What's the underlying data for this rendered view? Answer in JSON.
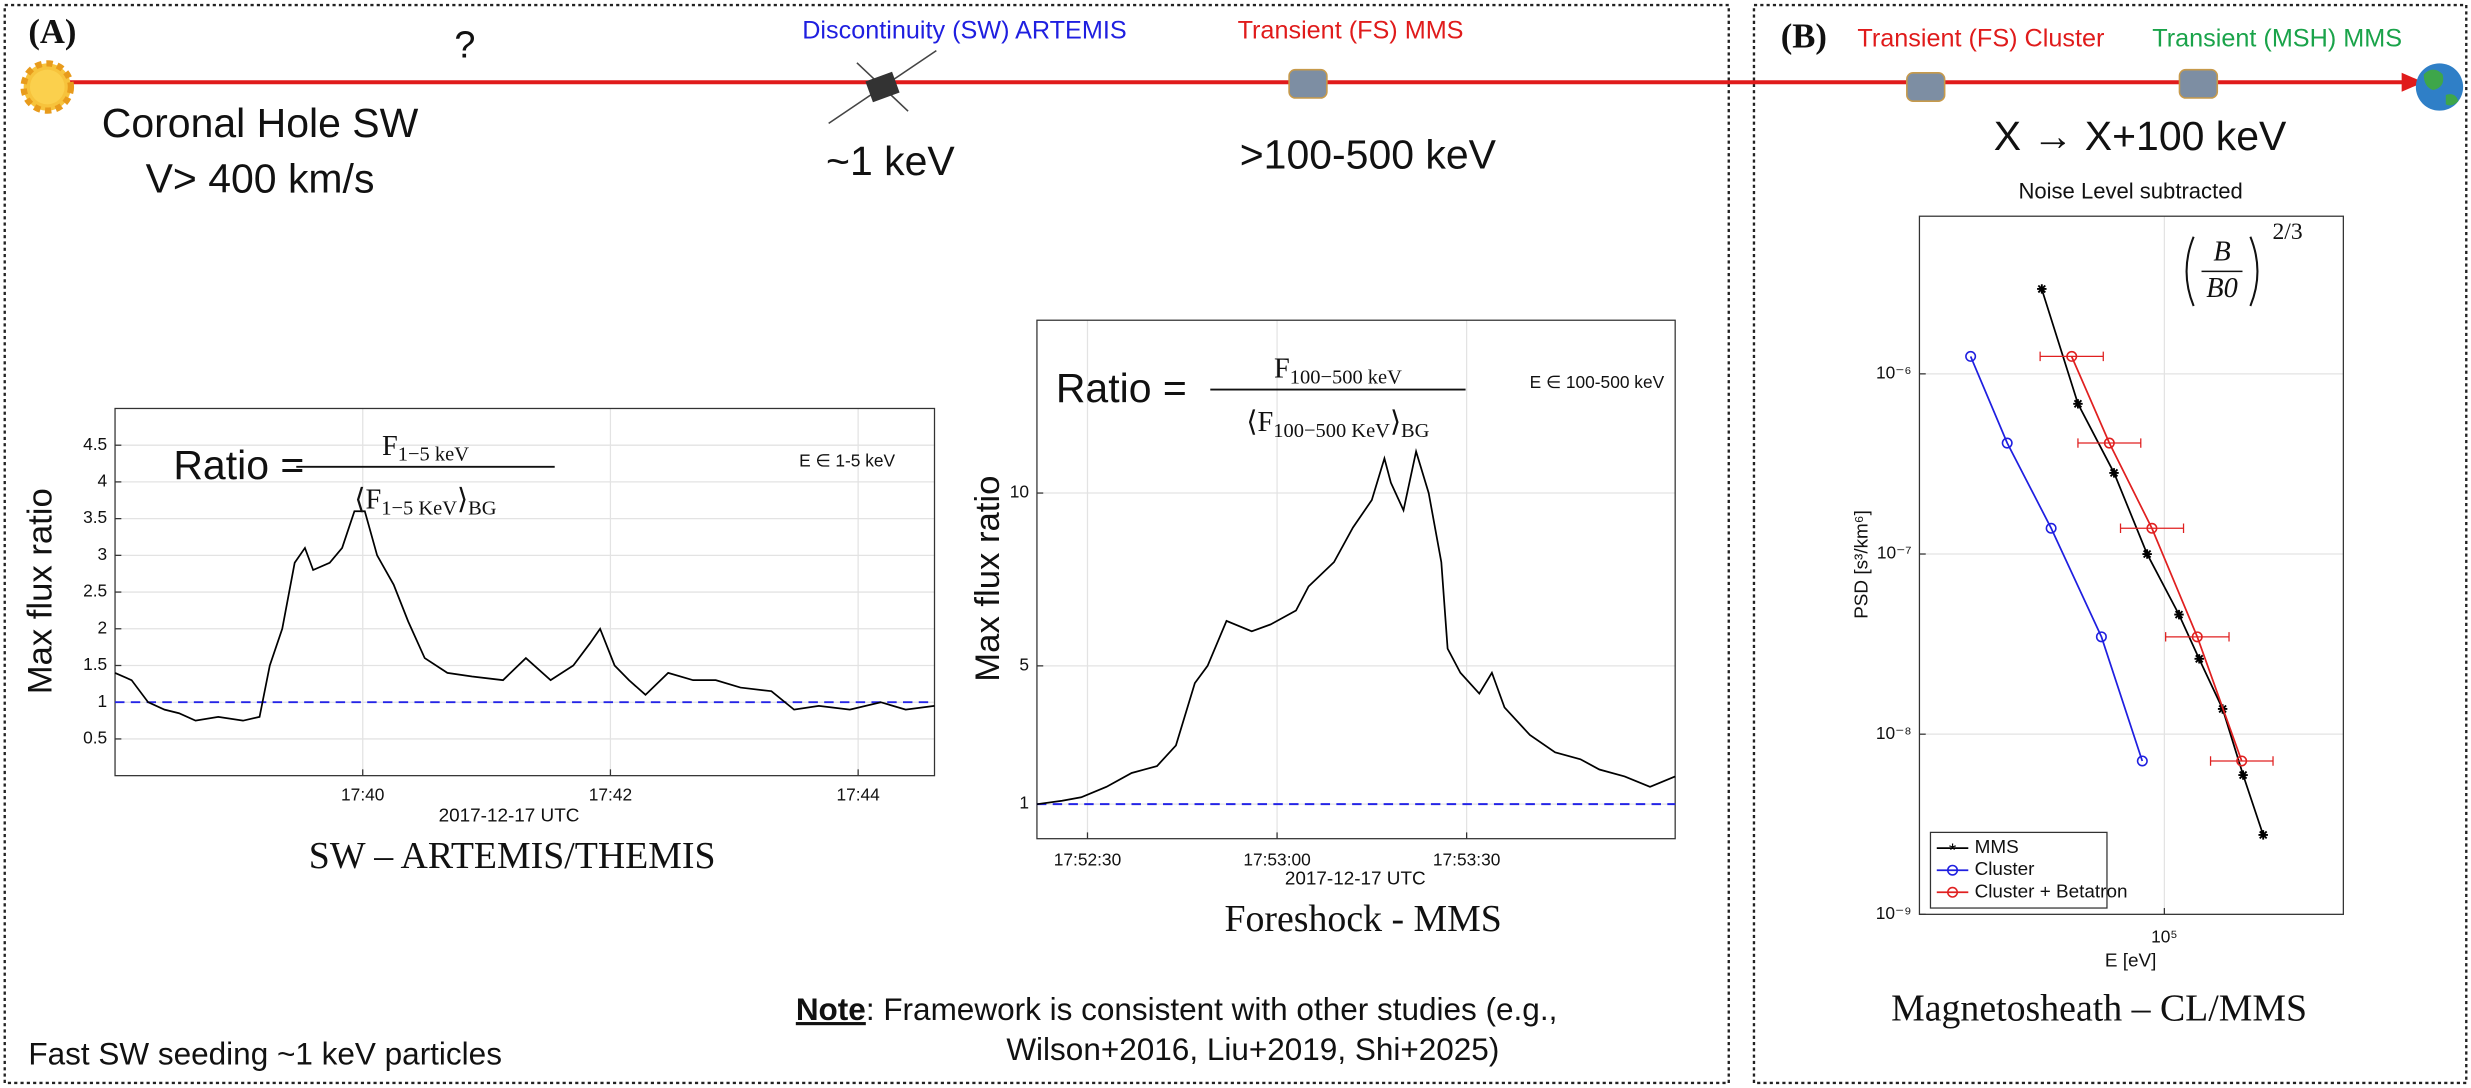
{
  "panels": {
    "a_label": "(A)",
    "b_label": "(B)"
  },
  "schematic": {
    "unknown": "?",
    "source_line1": "Coronal Hole SW",
    "source_line2": "V> 400 km/s",
    "sw_label": "Discontinuity (SW) ARTEMIS",
    "sw_energy": "~1 keV",
    "fs_label": "Transient (FS) MMS",
    "fs_energy": ">100-500 keV",
    "fs_cluster_label": "Transient (FS) Cluster",
    "msh_label": "Transient (MSH) MMS",
    "msh_energy": "X → X+100 keV"
  },
  "captions": [
    "SW – ARTEMIS/THEMIS",
    "Foreshock - MMS",
    "Magnetosheath – CL/MMS"
  ],
  "footer": {
    "seeding": "Fast SW seeding ~1 keV particles",
    "note_keyword": "Note",
    "note_line1": ": Framework is  consistent with other studies (e.g.,",
    "note_line2": "Wilson+2016, Liu+2019, Shi+2025)"
  },
  "chart_data": [
    {
      "type": "line",
      "xlabel": "2017-12-17 UTC",
      "ylabel": "Max flux ratio",
      "energy_label": "E ∈ 1-5 keV",
      "formula": {
        "lhs": "Ratio =",
        "num": [
          "F",
          "1−5 keV"
        ],
        "den": [
          "⟨F",
          "1−5 KeV",
          "⟩",
          "BG"
        ]
      },
      "x": [
        "17:38:00",
        "17:38:08",
        "17:38:16",
        "17:38:24",
        "17:38:31",
        "17:38:39",
        "17:38:50",
        "17:39:02",
        "17:39:10",
        "17:39:15",
        "17:39:21",
        "17:39:27",
        "17:39:32",
        "17:39:36",
        "17:39:44",
        "17:39:50",
        "17:39:56",
        "17:40:01",
        "17:40:07",
        "17:40:15",
        "17:40:22",
        "17:40:30",
        "17:40:41",
        "17:40:53",
        "17:41:08",
        "17:41:19",
        "17:41:31",
        "17:41:42",
        "17:41:50",
        "17:41:55",
        "17:42:02",
        "17:42:09",
        "17:42:17",
        "17:42:28",
        "17:42:40",
        "17:42:51",
        "17:43:03",
        "17:43:18",
        "17:43:29",
        "17:43:41",
        "17:43:56",
        "17:44:11",
        "17:44:23",
        "17:44:37"
      ],
      "values": [
        1.4,
        1.3,
        1.0,
        0.9,
        0.85,
        0.75,
        0.8,
        0.75,
        0.8,
        1.5,
        2.0,
        2.9,
        3.1,
        2.8,
        2.9,
        3.1,
        3.6,
        3.6,
        3.0,
        2.6,
        2.1,
        1.6,
        1.4,
        1.35,
        1.3,
        1.6,
        1.3,
        1.5,
        1.8,
        2.0,
        1.5,
        1.3,
        1.1,
        1.4,
        1.3,
        1.3,
        1.2,
        1.15,
        0.9,
        0.95,
        0.9,
        1.0,
        0.9,
        0.95
      ],
      "color": "#000000",
      "reference_line": {
        "value": 1,
        "color": "#2424e6"
      },
      "xlim": [
        "17:38:00",
        "17:44:37"
      ],
      "xticks": [
        "17:40",
        "17:42",
        "17:44"
      ],
      "ylim": [
        0,
        5
      ],
      "yticks": [
        0.5,
        1,
        1.5,
        2,
        2.5,
        3,
        3.5,
        4,
        4.5
      ],
      "grid": true
    },
    {
      "type": "line",
      "xlabel": "2017-12-17 UTC",
      "ylabel": "Max flux ratio",
      "energy_label": "E ∈ 100-500 keV",
      "formula": {
        "lhs": "Ratio =",
        "num": [
          "F",
          "100−500 keV"
        ],
        "den": [
          "⟨F",
          "100−500 KeV",
          "⟩",
          "BG"
        ]
      },
      "x": [
        "17:52:22",
        "17:52:26",
        "17:52:29",
        "17:52:33",
        "17:52:37",
        "17:52:41",
        "17:52:44",
        "17:52:47",
        "17:52:49",
        "17:52:52",
        "17:52:56",
        "17:52:59",
        "17:53:03",
        "17:53:05",
        "17:53:09",
        "17:53:12",
        "17:53:15",
        "17:53:17",
        "17:53:18",
        "17:53:20",
        "17:53:22",
        "17:53:24",
        "17:53:26",
        "17:53:27",
        "17:53:29",
        "17:53:32",
        "17:53:34",
        "17:53:36",
        "17:53:40",
        "17:53:44",
        "17:53:48",
        "17:53:51",
        "17:53:55",
        "17:53:59",
        "17:54:03"
      ],
      "values": [
        1.0,
        1.1,
        1.2,
        1.5,
        1.9,
        2.1,
        2.7,
        4.5,
        5.0,
        6.3,
        6.0,
        6.2,
        6.6,
        7.3,
        8.0,
        9.0,
        9.8,
        11.0,
        10.3,
        9.5,
        11.2,
        10.0,
        8.0,
        5.5,
        4.8,
        4.2,
        4.8,
        3.8,
        3.0,
        2.5,
        2.3,
        2.0,
        1.8,
        1.5,
        1.8
      ],
      "color": "#000000",
      "reference_line": {
        "value": 1,
        "color": "#2424e6"
      },
      "xlim": [
        "17:52:22",
        "17:54:03"
      ],
      "xticks": [
        "17:52:30",
        "17:53:00",
        "17:53:30"
      ],
      "ylim": [
        0,
        15
      ],
      "yticks": [
        1,
        5,
        10
      ],
      "grid": true
    },
    {
      "type": "line",
      "title": "Noise Level subtracted",
      "xlabel": "E [eV]",
      "ylabel": "PSD [s³/km⁶]",
      "formula": {
        "numerator": "B",
        "denominator": "B0",
        "exponent": "2/3"
      },
      "xscale": "log",
      "yscale": "log",
      "grid": true,
      "legend": "lower left",
      "xlim": [
        15000,
        400000
      ],
      "xticks": [
        {
          "value": 100000,
          "label": "10⁵"
        }
      ],
      "ylim": [
        1e-09,
        7.5e-06
      ],
      "yticks": [
        {
          "value": 1e-09,
          "label": "10⁻⁹"
        },
        {
          "value": 1e-08,
          "label": "10⁻⁸"
        },
        {
          "value": 1e-07,
          "label": "10⁻⁷"
        },
        {
          "value": 1e-06,
          "label": "10⁻⁶"
        }
      ],
      "series": [
        {
          "name": "MMS",
          "color": "#000000",
          "marker": "star",
          "x": [
            38700,
            51200,
            67700,
            87500,
            112000,
            131000,
            157000,
            184000,
            215000
          ],
          "values": [
            2.96e-06,
            6.82e-07,
            2.82e-07,
            1e-07,
            4.61e-08,
            2.62e-08,
            1.38e-08,
            5.93e-09,
            2.76e-09
          ]
        },
        {
          "name": "Cluster",
          "color": "#1f1fe0",
          "marker": "circle",
          "x": [
            22300,
            29600,
            41600,
            61400,
            84300
          ],
          "values": [
            1.25e-06,
            4.13e-07,
            1.39e-07,
            3.47e-08,
            7.1e-09
          ]
        },
        {
          "name": "Cluster + Betatron",
          "color": "#e02020",
          "marker": "circle",
          "x": [
            48800,
            65300,
            90800,
            129000,
            182000
          ],
          "values": [
            1.25e-06,
            4.13e-07,
            1.39e-07,
            3.47e-08,
            7.1e-09
          ],
          "x_low": [
            38200,
            51200,
            71200,
            101000,
            143000
          ],
          "x_high": [
            62300,
            83300,
            116000,
            165000,
            232000
          ]
        }
      ]
    }
  ]
}
